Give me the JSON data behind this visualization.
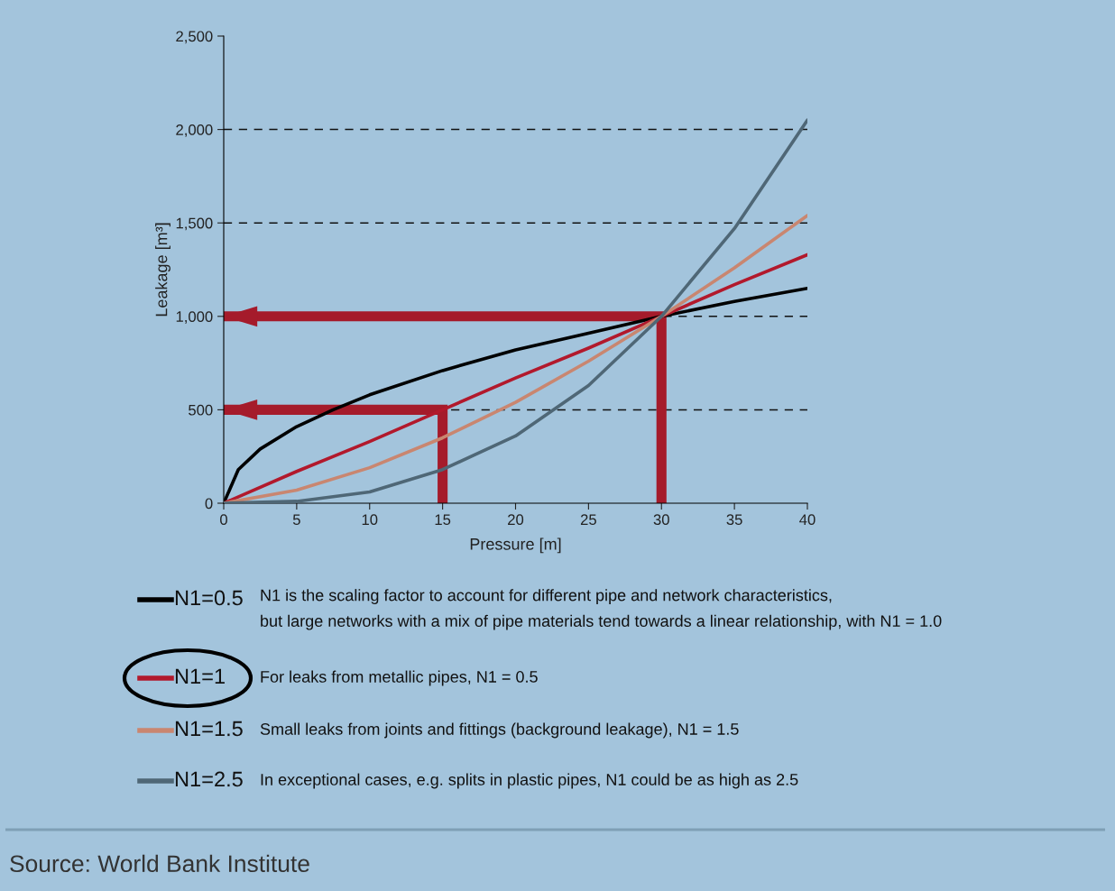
{
  "chart_data": {
    "type": "line",
    "xlabel": "Pressure [m]",
    "ylabel": "Leakage [m³]",
    "xlim": [
      0,
      40
    ],
    "ylim": [
      0,
      2500
    ],
    "xticks": [
      0,
      5,
      10,
      15,
      20,
      25,
      30,
      35,
      40
    ],
    "yticks": [
      0,
      500,
      {
        "value": 1000,
        "label": "1,000"
      },
      {
        "value": 1500,
        "label": "1,500"
      },
      {
        "value": 2000,
        "label": "2,000"
      },
      {
        "value": 2500,
        "label": "2,500"
      }
    ],
    "ref_lines": [
      {
        "axis": "y",
        "value": 500,
        "color": "#111111",
        "line_style": "dashed"
      },
      {
        "axis": "y",
        "value": 1000,
        "color": "#111111",
        "line_style": "dashed"
      },
      {
        "axis": "y",
        "value": 1500,
        "color": "#111111",
        "line_style": "dashed"
      },
      {
        "axis": "y",
        "value": 2000,
        "color": "#111111",
        "line_style": "dashed"
      }
    ],
    "legend": "bottom",
    "marker": "none",
    "series": [
      {
        "name": "N1=0.5",
        "color": "#000000",
        "x": [
          0,
          1,
          2.5,
          5,
          7.5,
          10,
          15,
          20,
          25,
          30,
          35,
          40
        ],
        "values": [
          0,
          180,
          290,
          410,
          500,
          580,
          710,
          820,
          910,
          1000,
          1080,
          1150
        ]
      },
      {
        "name": "N1=1",
        "color": "#b2192c",
        "x": [
          0,
          5,
          10,
          15,
          20,
          25,
          30,
          35,
          40
        ],
        "values": [
          0,
          170,
          330,
          500,
          670,
          830,
          1000,
          1170,
          1330
        ]
      },
      {
        "name": "N1=1.5",
        "color": "#c98670",
        "x": [
          0,
          5,
          10,
          15,
          20,
          25,
          30,
          35,
          40
        ],
        "values": [
          0,
          70,
          190,
          350,
          540,
          760,
          1000,
          1260,
          1540
        ]
      },
      {
        "name": "N1=2.5",
        "color": "#4f6776",
        "x": [
          0,
          5,
          10,
          15,
          20,
          25,
          30,
          35,
          40
        ],
        "values": [
          0,
          10,
          60,
          180,
          360,
          630,
          1000,
          1470,
          2050
        ]
      },
      {
        "color": "#a51b2b",
        "x": [
          15,
          15,
          0
        ],
        "values": [
          0,
          500,
          500
        ]
      },
      {
        "color": "#a51b2b",
        "x": [
          30,
          30,
          0
        ],
        "values": [
          0,
          1000,
          1000
        ]
      }
    ],
    "annotations": [
      "N1 is the scaling factor to account for different pipe and network characteristics,\nbut large networks with a mix of pipe materials tend towards a linear relationship, with N1 = 1.0",
      "For leaks from metallic pipes, N1 = 0.5",
      "Small leaks from joints and fittings (background leakage), N1 = 1.5",
      "In exceptional cases, e.g. splits in plastic pipes, N1 could be as high as 2.5",
      "Source: World Bank Institute"
    ]
  }
}
